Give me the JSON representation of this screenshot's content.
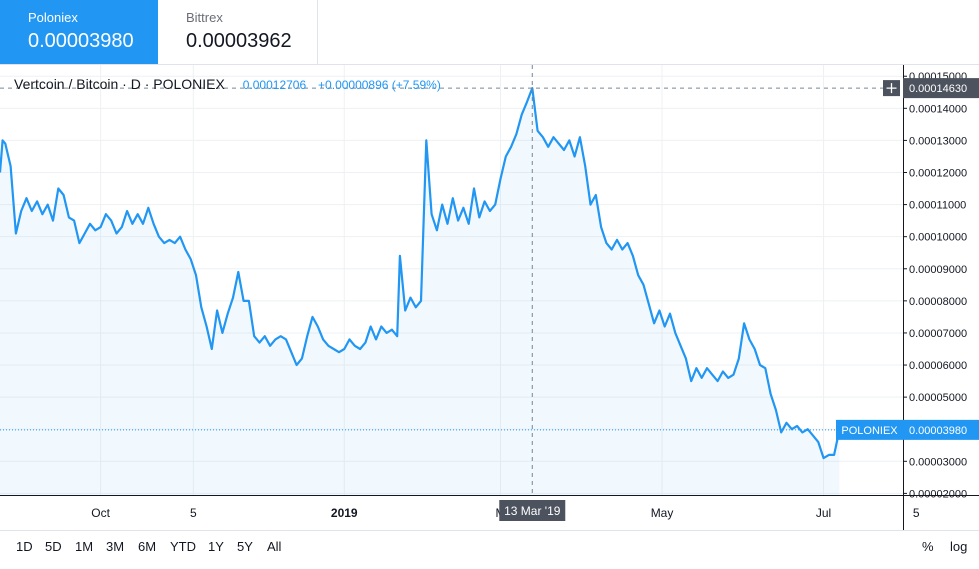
{
  "tabs": [
    {
      "name": "Poloniex",
      "value": "0.00003980",
      "active": true
    },
    {
      "name": "Bittrex",
      "value": "0.00003962",
      "active": false
    }
  ],
  "legend": {
    "symbol": "Vertcoin / Bitcoin · D · POLONIEX",
    "price": "0.00012706",
    "change": "+0.00000896 (+7.59%)"
  },
  "crosshair": {
    "date_label": "13 Mar '19",
    "price_label": "0.00014630"
  },
  "last_price_label": {
    "name": "POLONIEX",
    "value": "0.00003980"
  },
  "ranges": [
    "1D",
    "5D",
    "1M",
    "3M",
    "6M",
    "YTD",
    "1Y",
    "5Y",
    "All"
  ],
  "scale_toggles": {
    "percent": "%",
    "log": "log"
  },
  "colors": {
    "line": "#2196f3",
    "fill": "rgba(33,150,243,0.06)",
    "accent": "#2196f3",
    "crosshair_label_bg": "#4c525e",
    "text": "#131722",
    "grid": "#eef0f3"
  },
  "chart_data": {
    "type": "area",
    "title": "Vertcoin / Bitcoin · D · POLONIEX",
    "y_axis": {
      "ticks": [
        2e-05,
        3e-05,
        4e-05,
        5e-05,
        6e-05,
        7e-05,
        8e-05,
        9e-05,
        0.0001,
        0.00011,
        0.00012,
        0.00013,
        0.00014,
        0.00015
      ],
      "tick_labels": [
        "0.00002000",
        "0.00003000",
        "0.00004000",
        "0.00005000",
        "0.00006000",
        "0.00007000",
        "0.00008000",
        "0.00009000",
        "0.00010000",
        "0.00011000",
        "0.00012000",
        "0.00013000",
        "0.00014000",
        "0.00015000"
      ],
      "range": [
        1.95e-05,
        0.0001535
      ]
    },
    "x_axis": {
      "range": [
        "2018-08-24",
        "2019-07-31"
      ],
      "ticks": [
        {
          "date": "2018-10-01",
          "label": "Oct"
        },
        {
          "date": "2018-11-05",
          "label": "5"
        },
        {
          "date": "2019-01-01",
          "label": "2019"
        },
        {
          "date": "2019-03-01",
          "label": "M"
        },
        {
          "date": "2019-05-01",
          "label": "May"
        },
        {
          "date": "2019-07-01",
          "label": "Jul"
        },
        {
          "date": "2019-08-05",
          "label": "5"
        }
      ]
    },
    "grid": true,
    "crosshair": {
      "date": "2019-03-13",
      "value": 0.0001463
    },
    "series": [
      {
        "name": "POLONIEX",
        "points": [
          [
            "2018-08-24",
            0.00012
          ],
          [
            "2018-08-25",
            0.00013
          ],
          [
            "2018-08-26",
            0.000129
          ],
          [
            "2018-08-28",
            0.000122
          ],
          [
            "2018-08-30",
            0.000101
          ],
          [
            "2018-09-01",
            0.000108
          ],
          [
            "2018-09-03",
            0.000112
          ],
          [
            "2018-09-05",
            0.000108
          ],
          [
            "2018-09-07",
            0.000111
          ],
          [
            "2018-09-09",
            0.000107
          ],
          [
            "2018-09-11",
            0.00011
          ],
          [
            "2018-09-13",
            0.000105
          ],
          [
            "2018-09-15",
            0.000115
          ],
          [
            "2018-09-17",
            0.000113
          ],
          [
            "2018-09-19",
            0.000106
          ],
          [
            "2018-09-21",
            0.000105
          ],
          [
            "2018-09-23",
            9.8e-05
          ],
          [
            "2018-09-25",
            0.000101
          ],
          [
            "2018-09-27",
            0.000104
          ],
          [
            "2018-09-29",
            0.000102
          ],
          [
            "2018-10-01",
            0.000103
          ],
          [
            "2018-10-03",
            0.000107
          ],
          [
            "2018-10-05",
            0.000105
          ],
          [
            "2018-10-07",
            0.000101
          ],
          [
            "2018-10-09",
            0.000103
          ],
          [
            "2018-10-11",
            0.000108
          ],
          [
            "2018-10-13",
            0.000104
          ],
          [
            "2018-10-15",
            0.000107
          ],
          [
            "2018-10-17",
            0.000104
          ],
          [
            "2018-10-19",
            0.000109
          ],
          [
            "2018-10-21",
            0.000104
          ],
          [
            "2018-10-23",
            0.0001
          ],
          [
            "2018-10-25",
            9.8e-05
          ],
          [
            "2018-10-27",
            9.9e-05
          ],
          [
            "2018-10-29",
            9.8e-05
          ],
          [
            "2018-10-31",
            0.0001
          ],
          [
            "2018-11-02",
            9.6e-05
          ],
          [
            "2018-11-04",
            9.3e-05
          ],
          [
            "2018-11-06",
            8.8e-05
          ],
          [
            "2018-11-08",
            7.8e-05
          ],
          [
            "2018-11-10",
            7.2e-05
          ],
          [
            "2018-11-12",
            6.5e-05
          ],
          [
            "2018-11-14",
            7.7e-05
          ],
          [
            "2018-11-16",
            7e-05
          ],
          [
            "2018-11-18",
            7.6e-05
          ],
          [
            "2018-11-20",
            8.1e-05
          ],
          [
            "2018-11-22",
            8.9e-05
          ],
          [
            "2018-11-24",
            8e-05
          ],
          [
            "2018-11-26",
            8e-05
          ],
          [
            "2018-11-28",
            6.9e-05
          ],
          [
            "2018-11-30",
            6.7e-05
          ],
          [
            "2018-12-02",
            6.9e-05
          ],
          [
            "2018-12-04",
            6.6e-05
          ],
          [
            "2018-12-06",
            6.8e-05
          ],
          [
            "2018-12-08",
            6.9e-05
          ],
          [
            "2018-12-10",
            6.8e-05
          ],
          [
            "2018-12-12",
            6.4e-05
          ],
          [
            "2018-12-14",
            6e-05
          ],
          [
            "2018-12-16",
            6.2e-05
          ],
          [
            "2018-12-18",
            6.9e-05
          ],
          [
            "2018-12-20",
            7.5e-05
          ],
          [
            "2018-12-22",
            7.2e-05
          ],
          [
            "2018-12-24",
            6.8e-05
          ],
          [
            "2018-12-26",
            6.6e-05
          ],
          [
            "2018-12-28",
            6.5e-05
          ],
          [
            "2018-12-30",
            6.4e-05
          ],
          [
            "2019-01-01",
            6.5e-05
          ],
          [
            "2019-01-03",
            6.8e-05
          ],
          [
            "2019-01-05",
            6.6e-05
          ],
          [
            "2019-01-07",
            6.5e-05
          ],
          [
            "2019-01-09",
            6.7e-05
          ],
          [
            "2019-01-11",
            7.2e-05
          ],
          [
            "2019-01-13",
            6.8e-05
          ],
          [
            "2019-01-15",
            7.2e-05
          ],
          [
            "2019-01-17",
            7e-05
          ],
          [
            "2019-01-19",
            7.1e-05
          ],
          [
            "2019-01-21",
            6.9e-05
          ],
          [
            "2019-01-22",
            9.4e-05
          ],
          [
            "2019-01-24",
            7.7e-05
          ],
          [
            "2019-01-26",
            8.1e-05
          ],
          [
            "2019-01-28",
            7.8e-05
          ],
          [
            "2019-01-30",
            8e-05
          ],
          [
            "2019-02-01",
            0.00013
          ],
          [
            "2019-02-03",
            0.000107
          ],
          [
            "2019-02-05",
            0.000102
          ],
          [
            "2019-02-07",
            0.00011
          ],
          [
            "2019-02-09",
            0.000104
          ],
          [
            "2019-02-11",
            0.000112
          ],
          [
            "2019-02-13",
            0.000105
          ],
          [
            "2019-02-15",
            0.000109
          ],
          [
            "2019-02-17",
            0.000104
          ],
          [
            "2019-02-19",
            0.000115
          ],
          [
            "2019-02-21",
            0.000106
          ],
          [
            "2019-02-23",
            0.000111
          ],
          [
            "2019-02-25",
            0.000108
          ],
          [
            "2019-02-27",
            0.00011
          ],
          [
            "2019-03-01",
            0.000118
          ],
          [
            "2019-03-03",
            0.000125
          ],
          [
            "2019-03-05",
            0.000128
          ],
          [
            "2019-03-07",
            0.000132
          ],
          [
            "2019-03-09",
            0.000138
          ],
          [
            "2019-03-11",
            0.000142
          ],
          [
            "2019-03-13",
            0.0001463
          ],
          [
            "2019-03-15",
            0.000133
          ],
          [
            "2019-03-17",
            0.000131
          ],
          [
            "2019-03-19",
            0.000128
          ],
          [
            "2019-03-21",
            0.000131
          ],
          [
            "2019-03-23",
            0.000129
          ],
          [
            "2019-03-25",
            0.000127
          ],
          [
            "2019-03-27",
            0.00013
          ],
          [
            "2019-03-29",
            0.000125
          ],
          [
            "2019-03-31",
            0.000131
          ],
          [
            "2019-04-02",
            0.000122
          ],
          [
            "2019-04-04",
            0.00011
          ],
          [
            "2019-04-06",
            0.000113
          ],
          [
            "2019-04-08",
            0.000103
          ],
          [
            "2019-04-10",
            9.8e-05
          ],
          [
            "2019-04-12",
            9.6e-05
          ],
          [
            "2019-04-14",
            9.9e-05
          ],
          [
            "2019-04-16",
            9.6e-05
          ],
          [
            "2019-04-18",
            9.8e-05
          ],
          [
            "2019-04-20",
            9.4e-05
          ],
          [
            "2019-04-22",
            8.8e-05
          ],
          [
            "2019-04-24",
            8.5e-05
          ],
          [
            "2019-04-26",
            7.9e-05
          ],
          [
            "2019-04-28",
            7.3e-05
          ],
          [
            "2019-04-30",
            7.7e-05
          ],
          [
            "2019-05-02",
            7.2e-05
          ],
          [
            "2019-05-04",
            7.6e-05
          ],
          [
            "2019-05-06",
            7e-05
          ],
          [
            "2019-05-08",
            6.6e-05
          ],
          [
            "2019-05-10",
            6.2e-05
          ],
          [
            "2019-05-12",
            5.5e-05
          ],
          [
            "2019-05-14",
            5.9e-05
          ],
          [
            "2019-05-16",
            5.6e-05
          ],
          [
            "2019-05-18",
            5.9e-05
          ],
          [
            "2019-05-20",
            5.7e-05
          ],
          [
            "2019-05-22",
            5.5e-05
          ],
          [
            "2019-05-24",
            5.8e-05
          ],
          [
            "2019-05-26",
            5.6e-05
          ],
          [
            "2019-05-28",
            5.7e-05
          ],
          [
            "2019-05-30",
            6.2e-05
          ],
          [
            "2019-06-01",
            7.3e-05
          ],
          [
            "2019-06-03",
            6.8e-05
          ],
          [
            "2019-06-05",
            6.5e-05
          ],
          [
            "2019-06-07",
            6e-05
          ],
          [
            "2019-06-09",
            5.9e-05
          ],
          [
            "2019-06-11",
            5.1e-05
          ],
          [
            "2019-06-13",
            4.6e-05
          ],
          [
            "2019-06-15",
            3.9e-05
          ],
          [
            "2019-06-17",
            4.2e-05
          ],
          [
            "2019-06-19",
            4e-05
          ],
          [
            "2019-06-21",
            4.1e-05
          ],
          [
            "2019-06-23",
            3.9e-05
          ],
          [
            "2019-06-25",
            4e-05
          ],
          [
            "2019-06-27",
            3.8e-05
          ],
          [
            "2019-06-29",
            3.6e-05
          ],
          [
            "2019-07-01",
            3.1e-05
          ],
          [
            "2019-07-03",
            3.2e-05
          ],
          [
            "2019-07-05",
            3.2e-05
          ],
          [
            "2019-07-07",
            3.98e-05
          ]
        ]
      }
    ]
  }
}
